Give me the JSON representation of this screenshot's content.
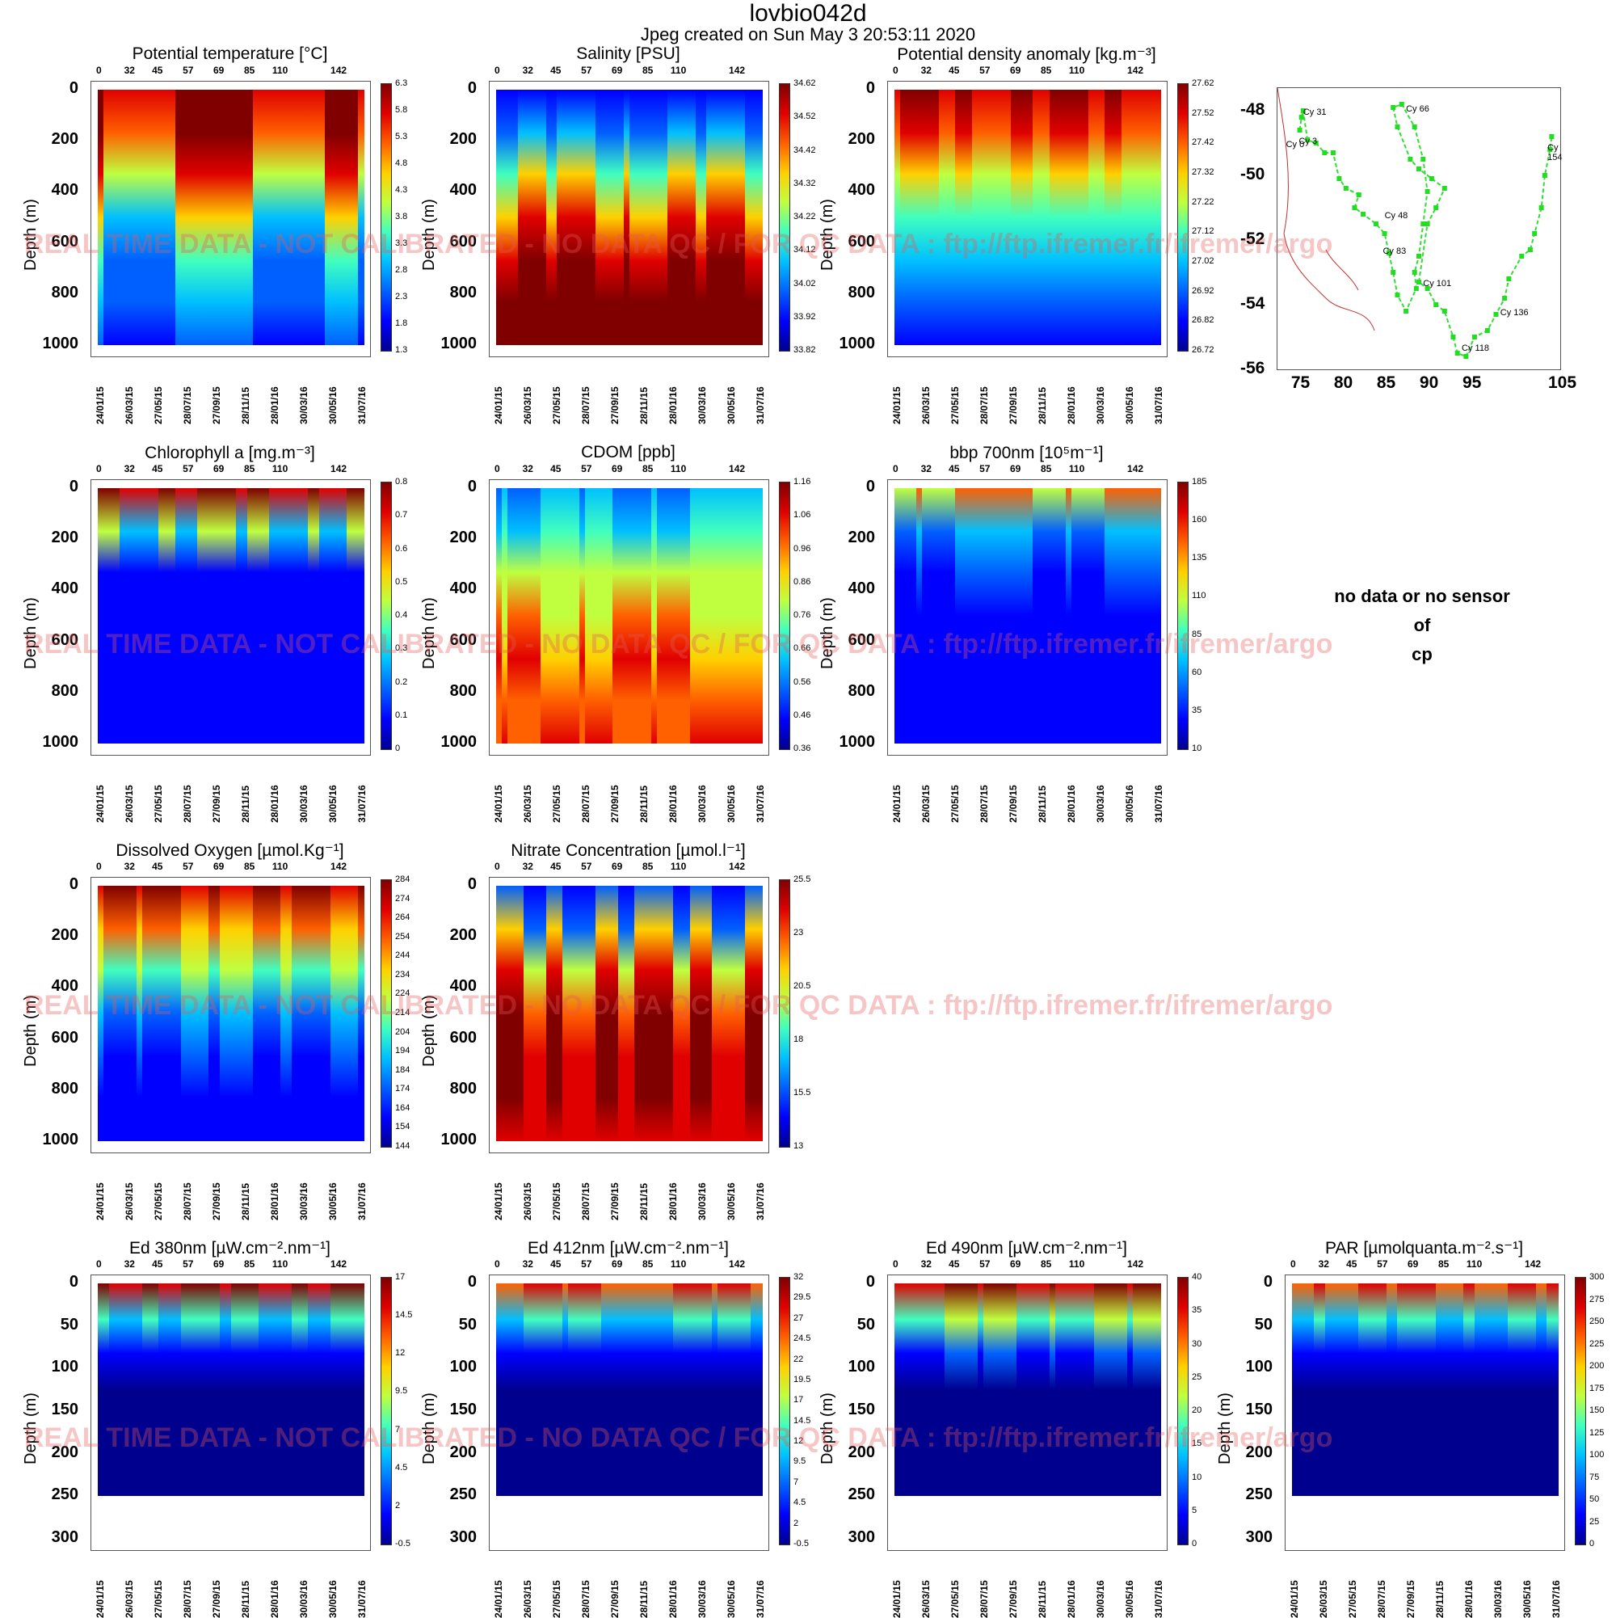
{
  "header": {
    "title": "lovbio042d",
    "subtitle": "Jpeg created on  Sun May  3 20:53:11 2020"
  },
  "watermark_text": "REAL TIME DATA - NOT CALIBRATED - NO DATA QC  /  FOR QC DATA : ftp://ftp.ifremer.fr/ifremer/argo",
  "no_data_message": [
    "no data or no sensor",
    "of",
    "cp"
  ],
  "cycle_ticks": [
    "0",
    "32",
    "45",
    "57",
    "69",
    "85",
    "110",
    "142"
  ],
  "date_ticks": [
    "24/01/15",
    "26/03/15",
    "27/05/15",
    "28/07/15",
    "27/09/15",
    "28/11/15",
    "28/01/16",
    "30/03/16",
    "30/05/16",
    "31/07/16"
  ],
  "depth_label": "Depth (m)",
  "chart_data": [
    {
      "type": "heatmap",
      "title": "Potential temperature [°C]",
      "ylabel": "Depth (m)",
      "ylim": [
        1000,
        0
      ],
      "yticks": [
        "0",
        "200",
        "400",
        "600",
        "800",
        "1000"
      ],
      "colorbar": [
        "6.3",
        "5.8",
        "5.3",
        "4.8",
        "4.3",
        "3.8",
        "3.3",
        "2.8",
        "2.3",
        "1.8",
        "1.3"
      ]
    },
    {
      "type": "heatmap",
      "title": "Salinity [PSU]",
      "ylabel": "Depth (m)",
      "ylim": [
        1000,
        0
      ],
      "yticks": [
        "0",
        "200",
        "400",
        "600",
        "800",
        "1000"
      ],
      "colorbar": [
        "34.62",
        "34.52",
        "34.42",
        "34.32",
        "34.22",
        "34.12",
        "34.02",
        "33.92",
        "33.82"
      ]
    },
    {
      "type": "heatmap",
      "title": "Potential density anomaly [kg.m⁻³]",
      "ylabel": "Depth (m)",
      "ylim": [
        1000,
        0
      ],
      "yticks": [
        "0",
        "200",
        "400",
        "600",
        "800",
        "1000"
      ],
      "colorbar": [
        "27.62",
        "27.52",
        "27.42",
        "27.32",
        "27.22",
        "27.12",
        "27.02",
        "26.92",
        "26.82",
        "26.72"
      ]
    },
    {
      "type": "heatmap",
      "title": "Chlorophyll a [mg.m⁻³]",
      "ylabel": "Depth (m)",
      "ylim": [
        1000,
        0
      ],
      "yticks": [
        "0",
        "200",
        "400",
        "600",
        "800",
        "1000"
      ],
      "colorbar": [
        "0.8",
        "0.7",
        "0.6",
        "0.5",
        "0.4",
        "0.3",
        "0.2",
        "0.1",
        "0"
      ]
    },
    {
      "type": "heatmap",
      "title": "CDOM  [ppb]",
      "ylabel": "Depth (m)",
      "ylim": [
        1000,
        0
      ],
      "yticks": [
        "0",
        "200",
        "400",
        "600",
        "800",
        "1000"
      ],
      "colorbar": [
        "1.16",
        "1.06",
        "0.96",
        "0.86",
        "0.76",
        "0.66",
        "0.56",
        "0.46",
        "0.36"
      ]
    },
    {
      "type": "heatmap",
      "title": "bbp 700nm [10⁵m⁻¹]",
      "ylabel": "Depth (m)",
      "ylim": [
        1000,
        0
      ],
      "yticks": [
        "0",
        "200",
        "400",
        "600",
        "800",
        "1000"
      ],
      "colorbar": [
        "185",
        "160",
        "135",
        "110",
        "85",
        "60",
        "35",
        "10"
      ]
    },
    {
      "type": "heatmap",
      "title": "Dissolved Oxygen [µmol.Kg⁻¹]",
      "ylabel": "Depth (m)",
      "ylim": [
        1000,
        0
      ],
      "yticks": [
        "0",
        "200",
        "400",
        "600",
        "800",
        "1000"
      ],
      "colorbar": [
        "284",
        "274",
        "264",
        "254",
        "244",
        "234",
        "224",
        "214",
        "204",
        "194",
        "184",
        "174",
        "164",
        "154",
        "144"
      ]
    },
    {
      "type": "heatmap",
      "title": "Nitrate Concentration [µmol.l⁻¹]",
      "ylabel": "Depth (m)",
      "ylim": [
        1000,
        0
      ],
      "yticks": [
        "0",
        "200",
        "400",
        "600",
        "800",
        "1000"
      ],
      "colorbar": [
        "25.5",
        "23",
        "20.5",
        "18",
        "15.5",
        "13"
      ]
    },
    {
      "type": "heatmap",
      "title": "Ed 380nm [µW.cm⁻².nm⁻¹]",
      "ylabel": "Depth (m)",
      "ylim": [
        300,
        0
      ],
      "yticks": [
        "0",
        "50",
        "100",
        "150",
        "200",
        "250",
        "300"
      ],
      "colorbar": [
        "17",
        "14.5",
        "12",
        "9.5",
        "7",
        "4.5",
        "2",
        "-0.5"
      ]
    },
    {
      "type": "heatmap",
      "title": "Ed 412nm [µW.cm⁻².nm⁻¹]",
      "ylabel": "Depth (m)",
      "ylim": [
        300,
        0
      ],
      "yticks": [
        "0",
        "50",
        "100",
        "150",
        "200",
        "250",
        "300"
      ],
      "colorbar": [
        "32",
        "29.5",
        "27",
        "24.5",
        "22",
        "19.5",
        "17",
        "14.5",
        "12",
        "9.5",
        "7",
        "4.5",
        "2",
        "-0.5"
      ]
    },
    {
      "type": "heatmap",
      "title": "Ed 490nm [µW.cm⁻².nm⁻¹]",
      "ylabel": "Depth (m)",
      "ylim": [
        300,
        0
      ],
      "yticks": [
        "0",
        "50",
        "100",
        "150",
        "200",
        "250",
        "300"
      ],
      "colorbar": [
        "40",
        "35",
        "30",
        "25",
        "20",
        "15",
        "10",
        "5",
        "0"
      ]
    },
    {
      "type": "heatmap",
      "title": "PAR [µmolquanta.m⁻².s⁻¹]",
      "ylabel": "Depth (m)",
      "ylim": [
        300,
        0
      ],
      "yticks": [
        "0",
        "50",
        "100",
        "150",
        "200",
        "250",
        "300"
      ],
      "colorbar": [
        "300",
        "275",
        "250",
        "225",
        "200",
        "175",
        "150",
        "125",
        "100",
        "75",
        "50",
        "25",
        "0"
      ]
    },
    {
      "type": "scatter",
      "title": "",
      "x_ticks": [
        "75",
        "80",
        "85",
        "90",
        "95",
        "105"
      ],
      "y_ticks": [
        "-48",
        "-50",
        "-52",
        "-54",
        "-56"
      ],
      "xlim": [
        72,
        105
      ],
      "ylim": [
        -56,
        -47.3
      ],
      "labels": [
        "Cy 31",
        "Cy 0",
        "Cy 3",
        "Cy 66",
        "Cy 154",
        "Cy 48",
        "Cy 83",
        "Cy 101",
        "Cy 136",
        "Cy 118"
      ],
      "track": [
        [
          74.6,
          -48.6
        ],
        [
          74.8,
          -48.2
        ],
        [
          75.0,
          -48.0
        ],
        [
          75.5,
          -48.9
        ],
        [
          76.5,
          -49.0
        ],
        [
          77.5,
          -49.3
        ],
        [
          78.5,
          -49.3
        ],
        [
          79.2,
          -50.1
        ],
        [
          80.0,
          -50.4
        ],
        [
          81.5,
          -50.6
        ],
        [
          81.0,
          -51.0
        ],
        [
          82.0,
          -51.2
        ],
        [
          83.5,
          -51.5
        ],
        [
          84.5,
          -51.8
        ],
        [
          85.0,
          -52.4
        ],
        [
          85.5,
          -53.0
        ],
        [
          86.0,
          -53.7
        ],
        [
          87.0,
          -54.2
        ],
        [
          88.2,
          -53.5
        ],
        [
          88.0,
          -53.0
        ],
        [
          88.5,
          -52.5
        ],
        [
          89.0,
          -51.5
        ],
        [
          89.5,
          -50.5
        ],
        [
          89.0,
          -49.5
        ],
        [
          88.0,
          -48.5
        ],
        [
          86.5,
          -47.8
        ],
        [
          85.5,
          -47.9
        ],
        [
          86.0,
          -48.5
        ],
        [
          87.5,
          -49.5
        ],
        [
          88.5,
          -49.8
        ],
        [
          90.0,
          -50.1
        ],
        [
          91.5,
          -50.4
        ],
        [
          90.5,
          -51.0
        ],
        [
          89.5,
          -51.5
        ],
        [
          88.5,
          -53.3
        ],
        [
          89.5,
          -53.5
        ],
        [
          90.5,
          -54.0
        ],
        [
          91.5,
          -54.2
        ],
        [
          92.5,
          -55.0
        ],
        [
          93.0,
          -55.5
        ],
        [
          94.0,
          -55.6
        ],
        [
          95.0,
          -55.0
        ],
        [
          96.5,
          -54.8
        ],
        [
          97.5,
          -54.3
        ],
        [
          98.5,
          -53.8
        ],
        [
          99.0,
          -53.2
        ],
        [
          100.5,
          -52.5
        ],
        [
          101.5,
          -52.3
        ],
        [
          102.0,
          -51.8
        ],
        [
          102.8,
          -51.0
        ],
        [
          103.2,
          -50.0
        ],
        [
          103.8,
          -49.2
        ],
        [
          104.0,
          -48.8
        ]
      ]
    }
  ]
}
